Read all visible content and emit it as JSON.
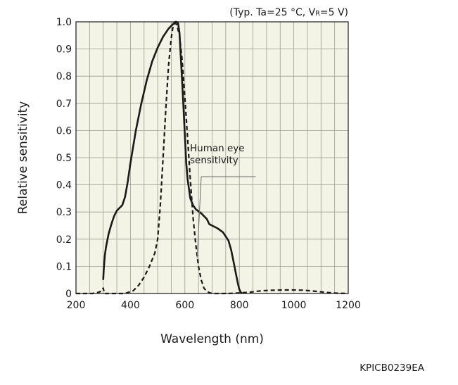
{
  "chart_data": {
    "type": "line",
    "conditions": "(Typ. Ta=25 °C, V",
    "conditions_sub": "R",
    "conditions_end": "=5 V)",
    "xlabel": "Wavelength (nm)",
    "ylabel": "Relative sensitivity",
    "xlim": [
      200,
      1200
    ],
    "ylim": [
      0,
      1.0
    ],
    "x_ticks": [
      200,
      400,
      600,
      800,
      1000,
      1200
    ],
    "x_tick_labels": [
      "200",
      "400",
      "600",
      "800",
      "1000",
      "1200"
    ],
    "y_ticks": [
      0,
      0.1,
      0.2,
      0.3,
      0.4,
      0.5,
      0.6,
      0.7,
      0.8,
      0.9,
      1.0
    ],
    "y_tick_labels": [
      "0",
      "0.1",
      "0.2",
      "0.3",
      "0.4",
      "0.5",
      "0.6",
      "0.7",
      "0.8",
      "0.9",
      "1.0"
    ],
    "x_grid": [
      200,
      250,
      300,
      350,
      400,
      450,
      500,
      550,
      600,
      650,
      700,
      750,
      800,
      850,
      900,
      950,
      1000,
      1050,
      1100,
      1150,
      1200
    ],
    "y_grid": [
      0,
      0.1,
      0.2,
      0.3,
      0.4,
      0.5,
      0.6,
      0.7,
      0.8,
      0.9,
      1.0
    ],
    "grid": true,
    "background": "#f3f3e6",
    "series": [
      {
        "style": "solid",
        "color": "#1a1a1a",
        "x": [
          300,
          302,
          306,
          310,
          320,
          330,
          340,
          350,
          360,
          370,
          380,
          390,
          400,
          420,
          440,
          460,
          480,
          500,
          520,
          540,
          550,
          560,
          565,
          570,
          575,
          580,
          585,
          590,
          595,
          600,
          605,
          610,
          620,
          630,
          640,
          660,
          680,
          690,
          700,
          720,
          740,
          760,
          770,
          780,
          790,
          795,
          800,
          805,
          810
        ],
        "y": [
          0.05,
          0.09,
          0.14,
          0.17,
          0.22,
          0.255,
          0.285,
          0.305,
          0.315,
          0.325,
          0.355,
          0.41,
          0.48,
          0.6,
          0.7,
          0.785,
          0.855,
          0.905,
          0.945,
          0.975,
          0.985,
          0.995,
          1.0,
          1.0,
          0.995,
          0.96,
          0.87,
          0.78,
          0.68,
          0.58,
          0.48,
          0.42,
          0.35,
          0.325,
          0.31,
          0.295,
          0.275,
          0.255,
          0.25,
          0.24,
          0.225,
          0.195,
          0.16,
          0.11,
          0.06,
          0.035,
          0.015,
          0.005,
          0.0
        ]
      },
      {
        "style": "dashed",
        "color": "#1a1a1a",
        "x": [
          200,
          260,
          285,
          295,
          300,
          305,
          350,
          380,
          410,
          430,
          450,
          470,
          490,
          500,
          510,
          520,
          530,
          540,
          550,
          555,
          560,
          565,
          570,
          580,
          590,
          600,
          610,
          620,
          630,
          640,
          650,
          660,
          670,
          680,
          690,
          700,
          720,
          760,
          800,
          840,
          880,
          920,
          960,
          1000,
          1040,
          1080,
          1120,
          1160,
          1200
        ],
        "y": [
          0.0,
          0.0,
          0.005,
          0.01,
          0.02,
          0.0,
          0.0,
          0.0,
          0.01,
          0.03,
          0.06,
          0.1,
          0.15,
          0.2,
          0.33,
          0.5,
          0.68,
          0.84,
          0.94,
          0.975,
          0.99,
          0.995,
          0.99,
          0.95,
          0.86,
          0.72,
          0.57,
          0.42,
          0.28,
          0.18,
          0.1,
          0.05,
          0.02,
          0.008,
          0.003,
          0.0,
          0.0,
          0.0,
          0.002,
          0.005,
          0.01,
          0.012,
          0.013,
          0.013,
          0.012,
          0.008,
          0.004,
          0.001,
          0.0
        ]
      }
    ],
    "annotation": {
      "lines": [
        "Human eye",
        "sensitivity"
      ],
      "target": {
        "x": 645,
        "y": 0.13
      },
      "anchor": {
        "x": 660,
        "y": 0.43
      },
      "underline_to": {
        "x": 860,
        "y": 0.43
      },
      "label_at": {
        "x": 660,
        "y": 0.49
      }
    },
    "code": "KPICB0239EA"
  }
}
